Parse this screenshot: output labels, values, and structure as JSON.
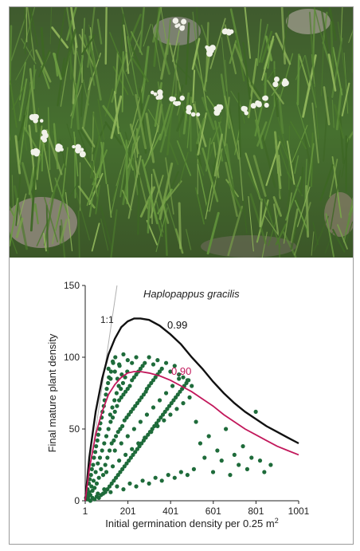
{
  "photo": {
    "icon": "plant-photo",
    "description_hidden": true
  },
  "chart_data": {
    "type": "scatter",
    "title": "Haplopappus gracilis",
    "xlabel": "Initial germination density  per 0.25 m",
    "xlabel_superscript": "2",
    "ylabel": "Final mature plant density",
    "xlim": [
      1,
      1001
    ],
    "ylim": [
      0,
      150
    ],
    "x_ticks": [
      1,
      201,
      401,
      601,
      801,
      1001
    ],
    "y_ticks": [
      0,
      50,
      100,
      150
    ],
    "reference_line": {
      "label": "1:1",
      "color": "#b0b0b0"
    },
    "curves": [
      {
        "label": "0.99",
        "color": "#111111",
        "peak": [
          260,
          127
        ],
        "end": [
          1001,
          40
        ],
        "points": [
          [
            1,
            0
          ],
          [
            20,
            30
          ],
          [
            50,
            62
          ],
          [
            80,
            85
          ],
          [
            110,
            102
          ],
          [
            140,
            113
          ],
          [
            170,
            121
          ],
          [
            200,
            125
          ],
          [
            230,
            127
          ],
          [
            260,
            127
          ],
          [
            300,
            126
          ],
          [
            350,
            122
          ],
          [
            400,
            116
          ],
          [
            450,
            109
          ],
          [
            500,
            100
          ],
          [
            550,
            92
          ],
          [
            600,
            83
          ],
          [
            650,
            75
          ],
          [
            700,
            68
          ],
          [
            750,
            62
          ],
          [
            800,
            57
          ],
          [
            850,
            52
          ],
          [
            900,
            48
          ],
          [
            950,
            44
          ],
          [
            1001,
            40
          ]
        ]
      },
      {
        "label": "0.90",
        "color": "#c2185b",
        "points": [
          [
            1,
            0
          ],
          [
            20,
            22
          ],
          [
            50,
            46
          ],
          [
            80,
            62
          ],
          [
            110,
            74
          ],
          [
            140,
            81
          ],
          [
            170,
            86
          ],
          [
            200,
            89
          ],
          [
            230,
            90
          ],
          [
            260,
            90
          ],
          [
            300,
            89
          ],
          [
            350,
            87
          ],
          [
            400,
            84
          ],
          [
            450,
            80
          ],
          [
            500,
            76
          ],
          [
            550,
            71
          ],
          [
            600,
            66
          ],
          [
            650,
            60
          ],
          [
            700,
            55
          ],
          [
            750,
            50
          ],
          [
            800,
            46
          ],
          [
            850,
            42
          ],
          [
            900,
            38
          ],
          [
            950,
            35
          ],
          [
            1001,
            32
          ]
        ]
      }
    ],
    "series": [
      {
        "name": "",
        "color": "#1e6b3a",
        "points": [
          [
            5,
            2
          ],
          [
            8,
            5
          ],
          [
            10,
            1
          ],
          [
            12,
            8
          ],
          [
            15,
            3
          ],
          [
            18,
            12
          ],
          [
            20,
            6
          ],
          [
            22,
            15
          ],
          [
            25,
            4
          ],
          [
            28,
            18
          ],
          [
            30,
            10
          ],
          [
            32,
            22
          ],
          [
            35,
            7
          ],
          [
            38,
            25
          ],
          [
            40,
            14
          ],
          [
            42,
            30
          ],
          [
            45,
            9
          ],
          [
            48,
            34
          ],
          [
            50,
            20
          ],
          [
            52,
            38
          ],
          [
            55,
            12
          ],
          [
            58,
            42
          ],
          [
            60,
            26
          ],
          [
            62,
            46
          ],
          [
            65,
            16
          ],
          [
            68,
            50
          ],
          [
            70,
            30
          ],
          [
            72,
            54
          ],
          [
            75,
            22
          ],
          [
            78,
            58
          ],
          [
            80,
            35
          ],
          [
            82,
            62
          ],
          [
            85,
            18
          ],
          [
            88,
            66
          ],
          [
            90,
            40
          ],
          [
            92,
            70
          ],
          [
            95,
            25
          ],
          [
            98,
            74
          ],
          [
            100,
            45
          ],
          [
            102,
            78
          ],
          [
            105,
            30
          ],
          [
            108,
            82
          ],
          [
            110,
            50
          ],
          [
            112,
            86
          ],
          [
            115,
            35
          ],
          [
            118,
            60
          ],
          [
            120,
            55
          ],
          [
            122,
            90
          ],
          [
            125,
            40
          ],
          [
            128,
            65
          ],
          [
            130,
            58
          ],
          [
            132,
            96
          ],
          [
            135,
            42
          ],
          [
            138,
            70
          ],
          [
            140,
            62
          ],
          [
            142,
            100
          ],
          [
            145,
            45
          ],
          [
            148,
            75
          ],
          [
            150,
            66
          ],
          [
            152,
            85
          ],
          [
            155,
            48
          ],
          [
            158,
            80
          ],
          [
            160,
            70
          ],
          [
            162,
            94
          ],
          [
            165,
            50
          ],
          [
            168,
            78
          ],
          [
            170,
            72
          ],
          [
            172,
            88
          ],
          [
            175,
            52
          ],
          [
            178,
            82
          ],
          [
            180,
            74
          ],
          [
            185,
            56
          ],
          [
            188,
            86
          ],
          [
            190,
            76
          ],
          [
            195,
            58
          ],
          [
            198,
            90
          ],
          [
            200,
            78
          ],
          [
            205,
            60
          ],
          [
            210,
            80
          ],
          [
            215,
            62
          ],
          [
            220,
            84
          ],
          [
            225,
            64
          ],
          [
            230,
            86
          ],
          [
            235,
            66
          ],
          [
            240,
            88
          ],
          [
            245,
            68
          ],
          [
            250,
            90
          ],
          [
            255,
            70
          ],
          [
            260,
            92
          ],
          [
            265,
            72
          ],
          [
            270,
            94
          ],
          [
            275,
            74
          ],
          [
            280,
            96
          ],
          [
            285,
            76
          ],
          [
            290,
            78
          ],
          [
            300,
            80
          ],
          [
            310,
            82
          ],
          [
            320,
            84
          ],
          [
            330,
            86
          ],
          [
            340,
            88
          ],
          [
            350,
            90
          ],
          [
            15,
            1
          ],
          [
            25,
            0
          ],
          [
            35,
            2
          ],
          [
            45,
            1
          ],
          [
            55,
            3
          ],
          [
            65,
            2
          ],
          [
            75,
            4
          ],
          [
            85,
            5
          ],
          [
            95,
            6
          ],
          [
            105,
            8
          ],
          [
            115,
            10
          ],
          [
            125,
            12
          ],
          [
            135,
            14
          ],
          [
            145,
            16
          ],
          [
            155,
            18
          ],
          [
            165,
            20
          ],
          [
            175,
            22
          ],
          [
            185,
            24
          ],
          [
            195,
            26
          ],
          [
            205,
            28
          ],
          [
            215,
            30
          ],
          [
            225,
            32
          ],
          [
            235,
            34
          ],
          [
            245,
            36
          ],
          [
            255,
            38
          ],
          [
            265,
            40
          ],
          [
            275,
            42
          ],
          [
            285,
            44
          ],
          [
            295,
            46
          ],
          [
            305,
            48
          ],
          [
            315,
            50
          ],
          [
            325,
            52
          ],
          [
            335,
            54
          ],
          [
            345,
            56
          ],
          [
            355,
            58
          ],
          [
            365,
            60
          ],
          [
            375,
            62
          ],
          [
            385,
            64
          ],
          [
            395,
            66
          ],
          [
            405,
            68
          ],
          [
            415,
            70
          ],
          [
            425,
            72
          ],
          [
            435,
            74
          ],
          [
            445,
            76
          ],
          [
            455,
            78
          ],
          [
            465,
            80
          ],
          [
            475,
            82
          ],
          [
            485,
            84
          ],
          [
            60,
            5
          ],
          [
            90,
            8
          ],
          [
            120,
            6
          ],
          [
            150,
            10
          ],
          [
            180,
            8
          ],
          [
            210,
            12
          ],
          [
            240,
            10
          ],
          [
            270,
            14
          ],
          [
            300,
            12
          ],
          [
            330,
            16
          ],
          [
            360,
            14
          ],
          [
            390,
            18
          ],
          [
            420,
            16
          ],
          [
            450,
            20
          ],
          [
            480,
            18
          ],
          [
            510,
            22
          ],
          [
            100,
            20
          ],
          [
            130,
            24
          ],
          [
            160,
            28
          ],
          [
            190,
            32
          ],
          [
            220,
            36
          ],
          [
            250,
            40
          ],
          [
            280,
            44
          ],
          [
            310,
            48
          ],
          [
            340,
            52
          ],
          [
            370,
            56
          ],
          [
            400,
            60
          ],
          [
            430,
            64
          ],
          [
            460,
            68
          ],
          [
            490,
            72
          ],
          [
            140,
            35
          ],
          [
            170,
            40
          ],
          [
            200,
            45
          ],
          [
            230,
            50
          ],
          [
            260,
            55
          ],
          [
            290,
            60
          ],
          [
            320,
            65
          ],
          [
            350,
            70
          ],
          [
            380,
            75
          ],
          [
            410,
            80
          ],
          [
            440,
            85
          ],
          [
            520,
            55
          ],
          [
            540,
            40
          ],
          [
            560,
            30
          ],
          [
            580,
            45
          ],
          [
            600,
            20
          ],
          [
            620,
            35
          ],
          [
            640,
            28
          ],
          [
            660,
            50
          ],
          [
            680,
            18
          ],
          [
            700,
            32
          ],
          [
            720,
            25
          ],
          [
            740,
            38
          ],
          [
            760,
            22
          ],
          [
            780,
            30
          ],
          [
            800,
            62
          ],
          [
            820,
            28
          ],
          [
            840,
            20
          ],
          [
            870,
            25
          ],
          [
            300,
            100
          ],
          [
            320,
            95
          ],
          [
            340,
            98
          ],
          [
            360,
            92
          ],
          [
            380,
            96
          ],
          [
            400,
            90
          ],
          [
            420,
            94
          ],
          [
            440,
            88
          ],
          [
            460,
            86
          ],
          [
            480,
            84
          ],
          [
            500,
            80
          ],
          [
            180,
            102
          ],
          [
            200,
            98
          ],
          [
            220,
            96
          ],
          [
            240,
            100
          ],
          [
            160,
            95
          ],
          [
            140,
            90
          ],
          [
            120,
            85
          ],
          [
            110,
            92
          ],
          [
            130,
            97
          ]
        ]
      }
    ]
  }
}
